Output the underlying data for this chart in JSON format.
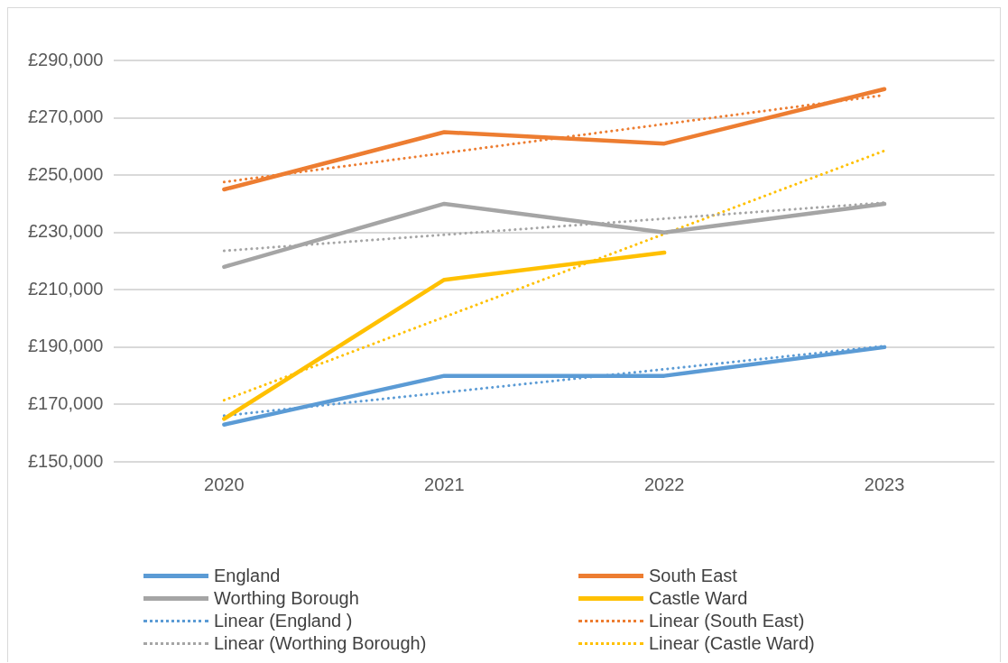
{
  "chart_data": {
    "type": "line",
    "categories": [
      "2020",
      "2021",
      "2022",
      "2023"
    ],
    "series": [
      {
        "name": "England",
        "color": "#5b9bd5",
        "values": [
          163000,
          180000,
          180000,
          190000
        ]
      },
      {
        "name": "South East",
        "color": "#ed7d31",
        "values": [
          245000,
          265000,
          261000,
          280000
        ]
      },
      {
        "name": "Worthing Borough",
        "color": "#a5a5a5",
        "values": [
          218000,
          240000,
          230000,
          240000
        ]
      },
      {
        "name": "Castle Ward",
        "color": "#ffc000",
        "values": [
          165000,
          213500,
          223000,
          null
        ]
      },
      {
        "name": "Linear (England )",
        "color": "#5b9bd5",
        "line_style": "dotted",
        "values": [
          166100,
          174200,
          182300,
          190400
        ]
      },
      {
        "name": "Linear (South East)",
        "color": "#ed7d31",
        "line_style": "dotted",
        "values": [
          247600,
          257700,
          267800,
          277900
        ]
      },
      {
        "name": "Linear (Worthing Borough)",
        "color": "#a5a5a5",
        "line_style": "dotted",
        "values": [
          223600,
          229200,
          234800,
          240400
        ]
      },
      {
        "name": "Linear (Castle Ward)",
        "color": "#ffc000",
        "line_style": "dotted",
        "values": [
          171500,
          200500,
          229500,
          258500
        ]
      }
    ],
    "ylim": [
      150000,
      290000
    ],
    "yticks": [
      {
        "value": 150000,
        "label": "£150,000"
      },
      {
        "value": 170000,
        "label": "£170,000"
      },
      {
        "value": 190000,
        "label": "£190,000"
      },
      {
        "value": 210000,
        "label": "£210,000"
      },
      {
        "value": 230000,
        "label": "£230,000"
      },
      {
        "value": 250000,
        "label": "£250,000"
      },
      {
        "value": 270000,
        "label": "£270,000"
      },
      {
        "value": 290000,
        "label": "£290,000"
      }
    ],
    "grid": "y",
    "legend": "bottom",
    "marker": "none",
    "line_style": "solid"
  }
}
